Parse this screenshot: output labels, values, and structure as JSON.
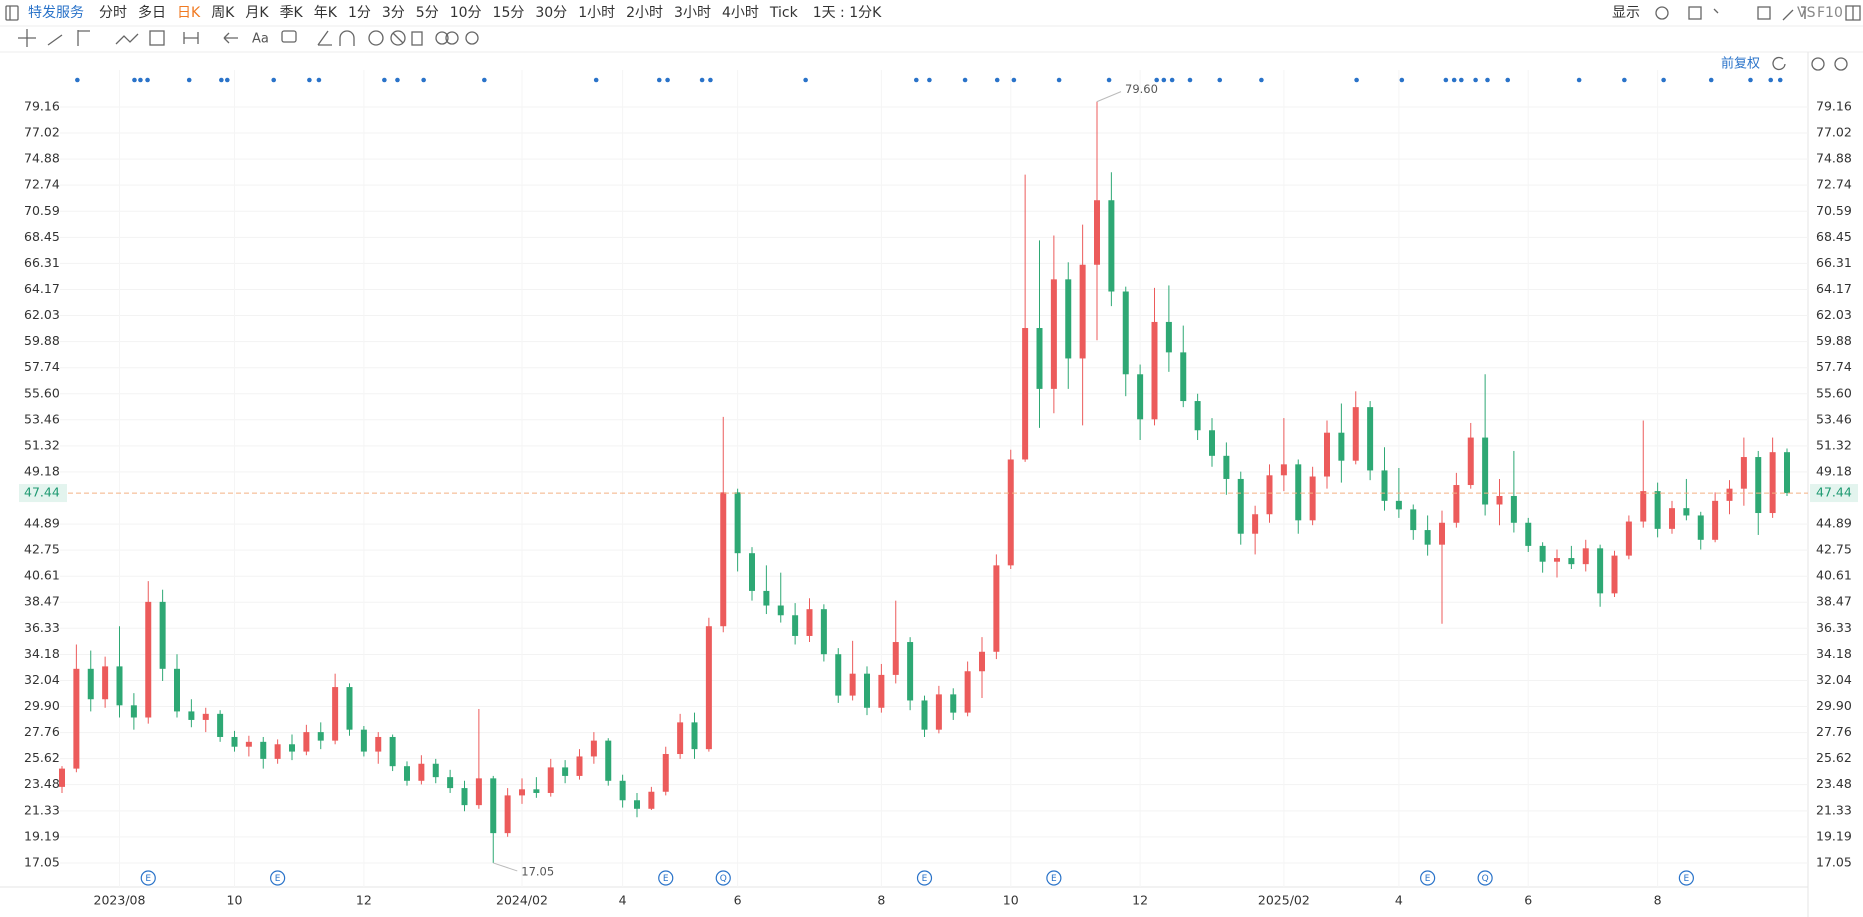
{
  "toolbar": {
    "stock": "特发服务",
    "periods": [
      "分时",
      "多日",
      "日K",
      "周K",
      "月K",
      "季K",
      "年K",
      "1分",
      "3分",
      "5分",
      "10分",
      "15分",
      "30分",
      "1小时",
      "2小时",
      "3小时",
      "4小时",
      "Tick"
    ],
    "period_setting": "1天 : 1分K",
    "display": "显示",
    "compare": "VS",
    "f10": "F10"
  },
  "drawing_tools": {
    "text_tool": "Aa"
  },
  "chart_data": {
    "type": "candlestick",
    "adjust": "前复权",
    "categories": [
      null,
      null,
      null,
      null,
      "2023/08",
      null,
      null,
      null,
      null,
      null,
      null,
      null,
      "10",
      null,
      null,
      null,
      null,
      null,
      null,
      null,
      null,
      "12",
      null,
      null,
      null,
      null,
      null,
      null,
      null,
      null,
      null,
      null,
      "2024/02",
      null,
      null,
      null,
      null,
      null,
      null,
      "4",
      null,
      null,
      null,
      null,
      null,
      null,
      null,
      "6",
      null,
      null,
      null,
      null,
      null,
      null,
      null,
      null,
      null,
      "8",
      null,
      null,
      null,
      null,
      null,
      null,
      null,
      null,
      "10",
      null,
      null,
      null,
      null,
      null,
      null,
      null,
      null,
      "12",
      null,
      null,
      null,
      null,
      null,
      null,
      null,
      null,
      null,
      "2025/02",
      null,
      null,
      null,
      null,
      null,
      null,
      null,
      "4",
      null,
      null,
      null,
      null,
      null,
      null,
      null,
      null,
      "6",
      null,
      null,
      null,
      null,
      null,
      null,
      null,
      null,
      "8",
      null,
      null,
      null,
      null,
      null,
      null,
      null,
      null,
      null
    ],
    "events": [
      null,
      null,
      null,
      null,
      null,
      null,
      "E",
      null,
      null,
      null,
      null,
      null,
      null,
      null,
      null,
      "E",
      null,
      null,
      null,
      null,
      null,
      null,
      null,
      null,
      null,
      null,
      null,
      null,
      null,
      null,
      null,
      null,
      null,
      null,
      null,
      null,
      null,
      null,
      null,
      null,
      null,
      null,
      "E",
      null,
      null,
      null,
      "Q",
      null,
      null,
      null,
      null,
      null,
      null,
      null,
      null,
      null,
      null,
      null,
      null,
      null,
      "E",
      null,
      null,
      null,
      null,
      null,
      null,
      null,
      null,
      "E",
      null,
      null,
      null,
      null,
      null,
      null,
      null,
      null,
      null,
      null,
      null,
      null,
      null,
      null,
      null,
      null,
      null,
      null,
      null,
      null,
      null,
      null,
      null,
      null,
      null,
      "E",
      null,
      null,
      null,
      "Q",
      null,
      null,
      null,
      null,
      null,
      null,
      null,
      null,
      null,
      null,
      null,
      null,
      null,
      "E",
      null,
      null,
      null,
      null,
      null,
      null
    ],
    "open": [
      23.3,
      24.8,
      33.0,
      30.5,
      33.2,
      30.0,
      29.0,
      38.5,
      33.0,
      29.5,
      28.8,
      29.3,
      27.4,
      26.6,
      27.0,
      25.6,
      26.8,
      26.2,
      27.8,
      27.1,
      31.5,
      28.0,
      26.2,
      27.4,
      25.0,
      23.8,
      25.2,
      24.1,
      23.2,
      21.8,
      24.0,
      19.5,
      22.6,
      23.1,
      22.8,
      24.9,
      24.2,
      25.8,
      27.1,
      23.8,
      22.2,
      21.5,
      22.9,
      26.0,
      28.6,
      26.4,
      36.5,
      47.5,
      42.5,
      39.4,
      38.2,
      37.4,
      35.7,
      37.9,
      34.2,
      30.8,
      32.6,
      29.8,
      32.5,
      35.2,
      30.4,
      28.0,
      30.9,
      29.4,
      32.8,
      34.4,
      41.5,
      50.2,
      61.0,
      56.0,
      65.0,
      58.5,
      66.2,
      71.5,
      64.0,
      57.2,
      53.5,
      61.5,
      59.0,
      55.0,
      52.6,
      50.5,
      48.6,
      44.1,
      45.7,
      48.9,
      49.8,
      45.2,
      48.8,
      52.4,
      50.1,
      54.5,
      49.3,
      46.8,
      46.1,
      44.4,
      43.2,
      45.0,
      48.1,
      52.0,
      46.5,
      47.2,
      45.0,
      43.1,
      41.8,
      42.1,
      41.6,
      42.9,
      39.2,
      42.3,
      45.1,
      47.6,
      44.5,
      46.2,
      45.6,
      43.6,
      46.8,
      47.8,
      50.4,
      45.8,
      50.8
    ],
    "high": [
      25.0,
      35.0,
      34.5,
      34.0,
      36.5,
      31.0,
      40.2,
      39.5,
      34.2,
      30.5,
      29.8,
      29.6,
      27.9,
      27.5,
      27.4,
      27.2,
      27.6,
      28.4,
      28.6,
      32.6,
      31.8,
      28.3,
      27.8,
      27.6,
      25.4,
      25.9,
      25.6,
      24.7,
      23.8,
      29.7,
      24.2,
      23.2,
      24.0,
      24.1,
      25.6,
      25.5,
      26.4,
      27.8,
      27.3,
      24.3,
      22.8,
      23.3,
      26.6,
      29.3,
      29.4,
      37.2,
      53.7,
      47.8,
      43.0,
      41.5,
      40.9,
      38.4,
      38.8,
      38.3,
      34.7,
      35.3,
      33.2,
      33.4,
      38.6,
      35.6,
      30.8,
      31.6,
      31.4,
      33.6,
      35.6,
      42.4,
      51.0,
      73.6,
      68.2,
      68.6,
      66.4,
      69.5,
      79.6,
      73.8,
      64.4,
      58.0,
      64.3,
      64.5,
      61.2,
      55.6,
      53.6,
      51.6,
      49.2,
      46.4,
      49.8,
      53.6,
      50.2,
      49.6,
      53.4,
      54.8,
      55.8,
      55.0,
      51.2,
      49.5,
      46.5,
      45.6,
      46.0,
      49.1,
      53.2,
      57.2,
      48.6,
      50.9,
      45.4,
      43.4,
      42.8,
      43.1,
      43.6,
      43.2,
      42.7,
      45.6,
      53.4,
      48.3,
      46.8,
      48.6,
      45.9,
      47.5,
      48.5,
      52.0,
      50.9,
      52.0,
      51.1
    ],
    "low": [
      22.8,
      24.5,
      29.5,
      29.8,
      29.0,
      28.0,
      28.5,
      32.0,
      29.0,
      28.2,
      27.8,
      27.0,
      26.2,
      25.8,
      24.8,
      25.2,
      25.5,
      25.9,
      26.4,
      26.8,
      27.5,
      25.8,
      25.2,
      24.6,
      23.4,
      23.5,
      23.6,
      22.8,
      21.3,
      21.5,
      17.05,
      19.2,
      21.9,
      22.4,
      22.5,
      23.6,
      23.9,
      25.2,
      23.4,
      21.6,
      20.8,
      21.4,
      22.6,
      25.6,
      25.6,
      26.2,
      36.0,
      41.0,
      38.6,
      37.5,
      36.8,
      35.0,
      35.2,
      33.6,
      30.2,
      30.4,
      29.2,
      29.4,
      31.8,
      29.6,
      27.4,
      27.7,
      28.8,
      29.1,
      30.6,
      33.8,
      41.2,
      50.0,
      52.8,
      54.0,
      56.0,
      53.0,
      60.0,
      62.8,
      55.4,
      51.8,
      53.0,
      57.4,
      54.5,
      51.8,
      49.6,
      47.3,
      43.2,
      42.4,
      45.0,
      47.6,
      44.1,
      44.8,
      47.8,
      48.3,
      49.8,
      48.5,
      46.0,
      45.4,
      43.6,
      42.3,
      36.7,
      44.6,
      47.8,
      45.6,
      44.8,
      44.2,
      42.6,
      40.9,
      40.5,
      41.2,
      41.0,
      38.1,
      38.9,
      42.0,
      44.6,
      43.8,
      44.1,
      45.2,
      42.8,
      43.4,
      45.7,
      46.4,
      44.0,
      45.4,
      47.2
    ],
    "close": [
      24.8,
      33.0,
      30.5,
      33.2,
      30.0,
      29.0,
      38.5,
      33.0,
      29.5,
      28.8,
      29.3,
      27.4,
      26.6,
      27.0,
      25.6,
      26.8,
      26.2,
      27.8,
      27.1,
      31.5,
      28.0,
      26.2,
      27.4,
      25.0,
      23.8,
      25.2,
      24.1,
      23.2,
      21.8,
      24.0,
      19.5,
      22.6,
      23.1,
      22.8,
      24.9,
      24.2,
      25.8,
      27.1,
      23.8,
      22.2,
      21.5,
      22.9,
      26.0,
      28.6,
      26.4,
      36.5,
      47.5,
      42.5,
      39.4,
      38.2,
      37.4,
      35.7,
      37.9,
      34.2,
      30.8,
      32.6,
      29.8,
      32.5,
      35.2,
      30.4,
      28.0,
      30.9,
      29.4,
      32.8,
      34.4,
      41.5,
      50.2,
      61.0,
      56.0,
      65.0,
      58.5,
      66.2,
      71.5,
      64.0,
      57.2,
      53.5,
      61.5,
      59.0,
      55.0,
      52.6,
      50.5,
      48.6,
      44.1,
      45.7,
      48.9,
      49.8,
      45.2,
      48.8,
      52.4,
      50.1,
      54.5,
      49.3,
      46.8,
      46.1,
      44.4,
      43.2,
      45.0,
      48.1,
      52.0,
      46.5,
      47.2,
      45.0,
      43.1,
      41.8,
      42.1,
      41.6,
      42.9,
      39.2,
      42.3,
      45.1,
      47.6,
      44.5,
      46.2,
      45.6,
      43.6,
      46.8,
      47.8,
      50.4,
      45.8,
      50.8,
      47.44
    ],
    "up_color": "#ec5b5b",
    "down_color": "#2ea874",
    "max_label": "79.60",
    "min_label": "17.05",
    "last_price_label": "47.44",
    "ylim": [
      15.32,
      82.2
    ],
    "yticks": [
      17.05,
      19.19,
      21.33,
      23.48,
      25.62,
      27.76,
      {
        "value": 29.9,
        "label": "29.90"
      },
      32.04,
      34.18,
      36.33,
      38.47,
      40.61,
      42.75,
      44.89,
      49.18,
      51.32,
      53.46,
      {
        "value": 55.6,
        "label": "55.60"
      },
      57.74,
      59.88,
      62.03,
      64.17,
      66.31,
      68.45,
      70.59,
      72.74,
      74.88,
      77.02,
      79.16
    ],
    "grid": true
  }
}
